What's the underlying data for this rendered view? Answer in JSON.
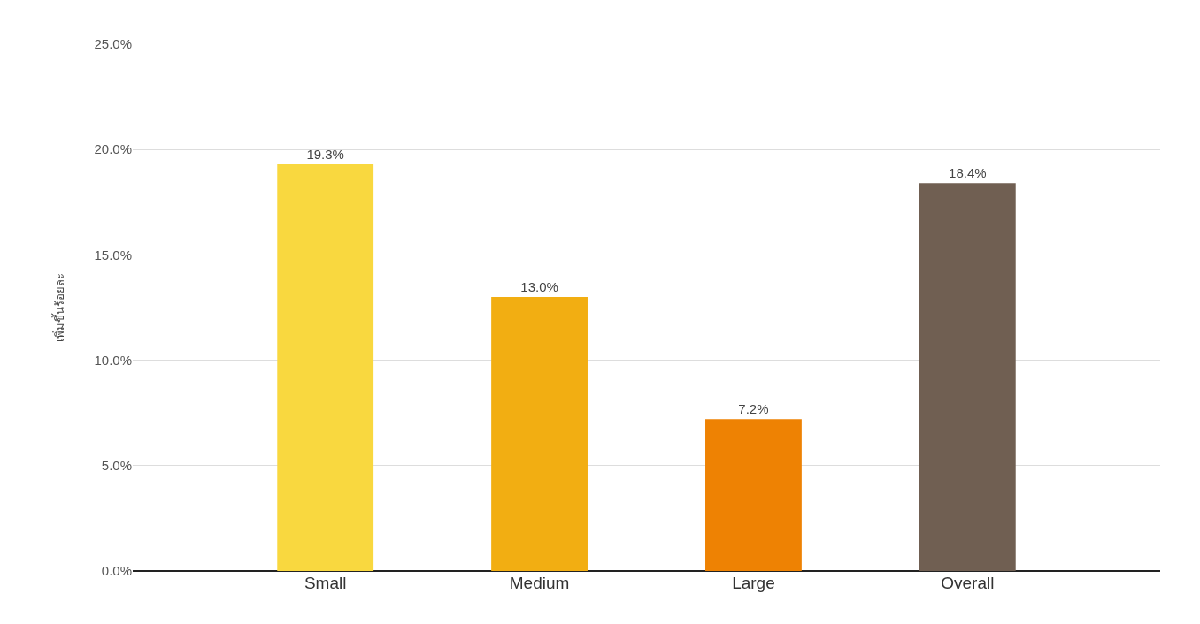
{
  "chart_data": {
    "type": "bar",
    "ylabel": "เพิ่มขึ้นร้อยละ",
    "categories": [
      "Small",
      "Medium",
      "Large",
      "Overall"
    ],
    "values": [
      19.3,
      13.0,
      7.2,
      18.4
    ],
    "colors": [
      "#f9d83f",
      "#f2ae12",
      "#ee8203",
      "#705f52"
    ],
    "value_labels": [
      "19.3%",
      "13.0%",
      "7.2%",
      "18.4%"
    ],
    "ylim": [
      0,
      25
    ],
    "yticks": [
      {
        "value": 0,
        "label": "0.0%"
      },
      {
        "value": 5,
        "label": "5.0%"
      },
      {
        "value": 10,
        "label": "10.0%"
      },
      {
        "value": 15,
        "label": "15.0%"
      },
      {
        "value": 20,
        "label": "20.0%"
      },
      {
        "value": 25,
        "label": "25.0%"
      }
    ],
    "grid": "y"
  }
}
